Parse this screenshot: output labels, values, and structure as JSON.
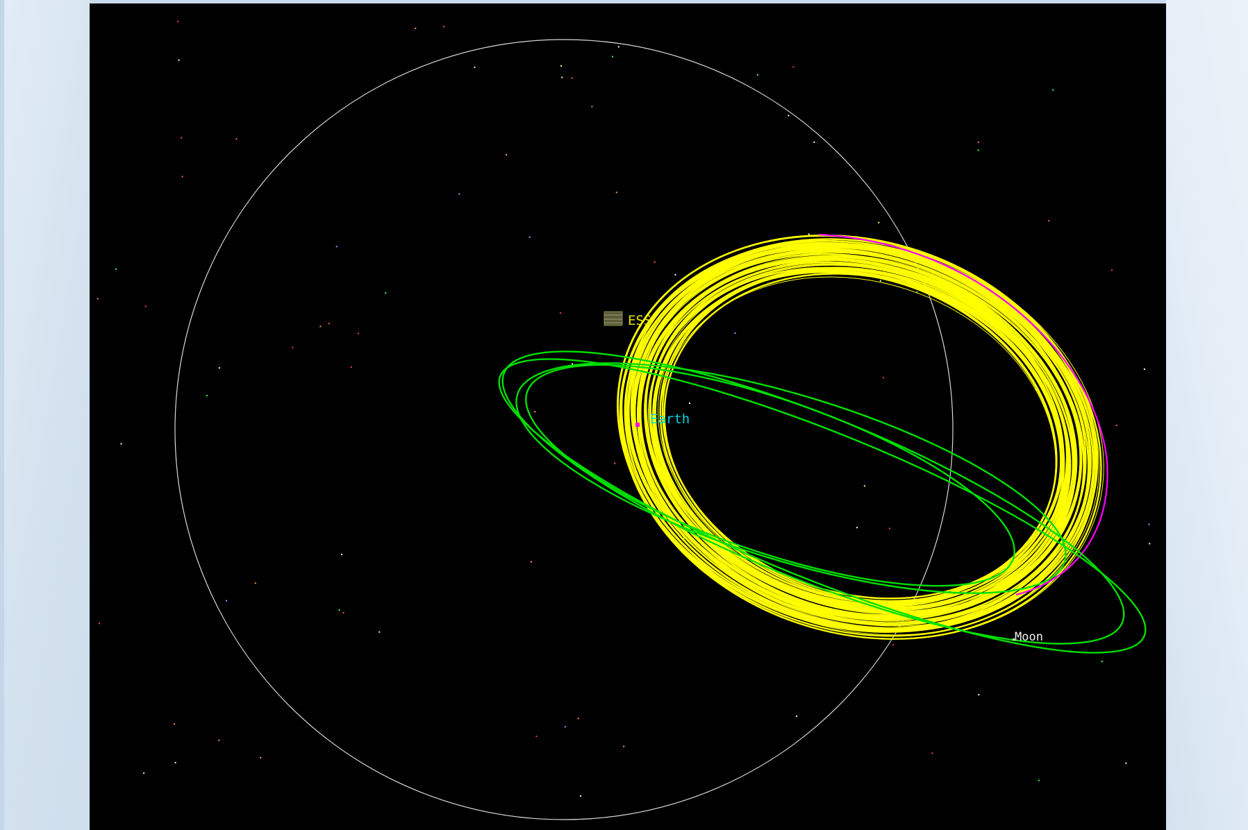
{
  "window": {
    "frame_color": "#dce8f3",
    "viewport_background": "#000000"
  },
  "scene": {
    "bodies": [
      {
        "key": "ess",
        "label": "ESS",
        "label_color": "#e6e600",
        "icon": "spacecraft-icon"
      },
      {
        "key": "earth",
        "label": "Earth",
        "label_color": "#00d8e0",
        "marker_color": "#ff00ff",
        "icon": "earth-marker-icon"
      },
      {
        "key": "moon",
        "label": "Moon",
        "label_color": "#f0f0f0",
        "icon": "moon-marker-icon"
      }
    ],
    "orbits": {
      "moon_orbit_color": "#ffffff",
      "ess_orbit_color": "#ffff00",
      "transfer_orbit_color": "#00e000",
      "insertion_arc_color": "#ff00ff"
    },
    "star_colors": [
      "#ff6a3d",
      "#ffffff",
      "#50ff50",
      "#ff4040",
      "#ffa040",
      "#a0a0ff",
      "#ffff80"
    ]
  }
}
